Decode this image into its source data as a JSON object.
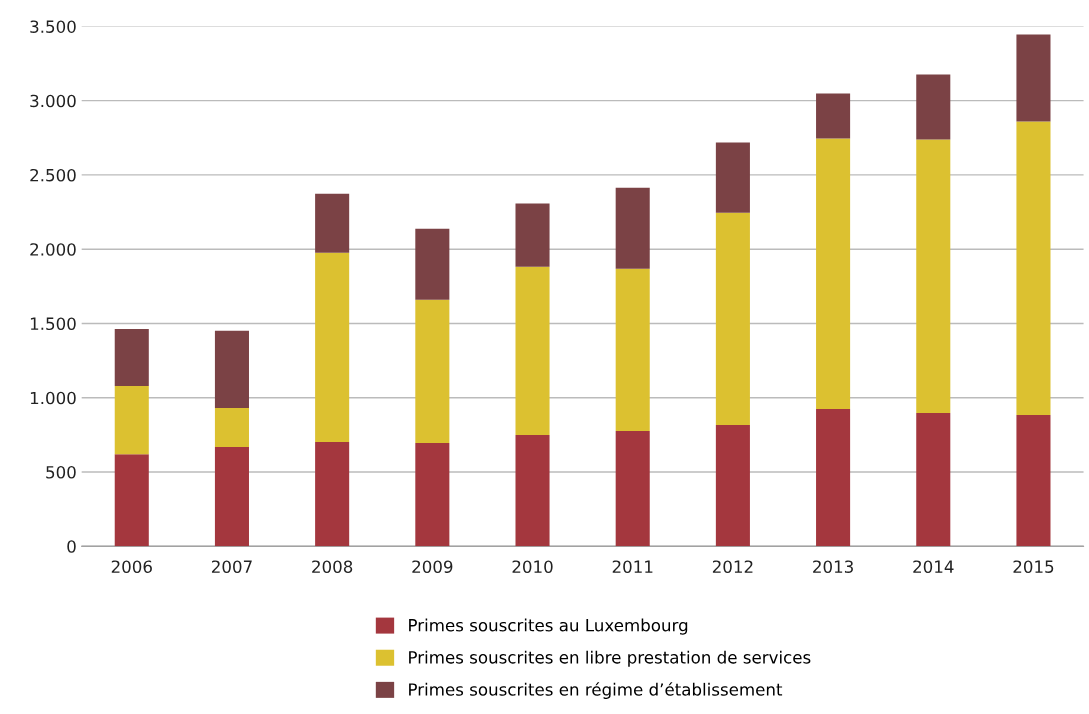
{
  "chart_data": {
    "type": "bar",
    "stacked": true,
    "categories": [
      "2006",
      "2007",
      "2008",
      "2009",
      "2010",
      "2011",
      "2012",
      "2013",
      "2014",
      "2015"
    ],
    "series": [
      {
        "name": "Primes souscrites au Luxembourg",
        "color": "#a4373e",
        "values": [
          620,
          668,
          701,
          695,
          749,
          776,
          816,
          924,
          897,
          883
        ]
      },
      {
        "name": "Primes souscrites en libre prestation de services",
        "color": "#dcc130",
        "values": [
          459,
          263,
          1275,
          964,
          1133,
          1092,
          1430,
          1821,
          1841,
          1977
        ]
      },
      {
        "name": "Primes souscrites en régime d’établissement",
        "color": "#7b4245",
        "values": [
          384,
          519,
          398,
          479,
          425,
          546,
          472,
          303,
          438,
          586
        ]
      }
    ],
    "ylim": [
      0,
      3500
    ],
    "yticks": [
      {
        "value": 0,
        "label": "0"
      },
      {
        "value": 500,
        "label": "500"
      },
      {
        "value": 1000,
        "label": "1.000"
      },
      {
        "value": 1500,
        "label": "1.500"
      },
      {
        "value": 2000,
        "label": "2.000"
      },
      {
        "value": 2500,
        "label": "2.500"
      },
      {
        "value": 3000,
        "label": "3.000"
      },
      {
        "value": 3500,
        "label": "3.500"
      }
    ],
    "grid": "y",
    "legend": "bottom"
  }
}
